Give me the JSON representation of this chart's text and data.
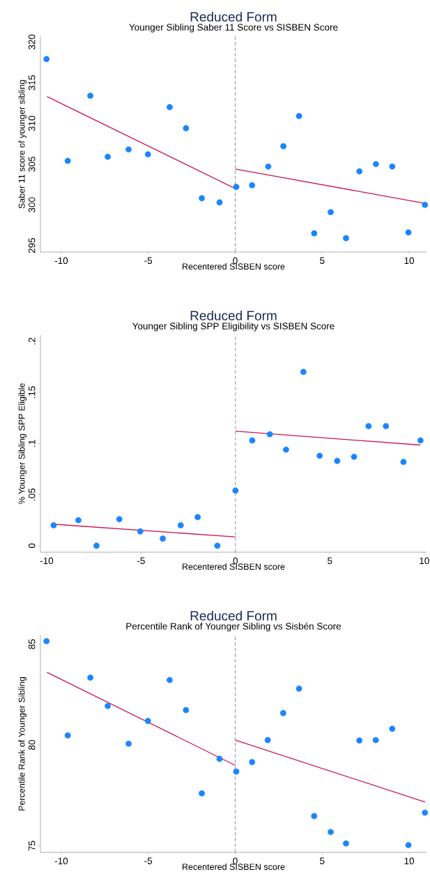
{
  "chart_data": [
    {
      "type": "scatter",
      "title": "Reduced Form",
      "subtitle": "Younger Sibling Saber 11 Score vs SISBEN Score",
      "xlabel": "Recentered SISBEN score",
      "ylabel": "Saber 11 score of younger sibling",
      "xlim": [
        -11.2,
        11
      ],
      "ylim": [
        294.2,
        320.7
      ],
      "xticks": [
        -10,
        -5,
        0,
        5,
        10
      ],
      "yticks": [
        295,
        300,
        305,
        310,
        315,
        320
      ],
      "ref_lines": [
        {
          "axis": "x",
          "value": 0,
          "color": "#888888",
          "line_style": "dashed"
        }
      ],
      "series": [
        {
          "color": "#1a85ff",
          "x": [
            -10.85,
            -9.63,
            -8.33,
            -7.33,
            -6.13,
            -5.02,
            -3.77,
            -2.83,
            -1.92,
            -0.9,
            0.06,
            0.97,
            1.9,
            2.77,
            3.67,
            4.54,
            5.49,
            6.37,
            7.14,
            8.09,
            9.03,
            9.96,
            10.91
          ],
          "values": [
            317.9,
            305.4,
            313.4,
            305.9,
            306.8,
            306.2,
            312.0,
            309.4,
            300.8,
            300.3,
            302.2,
            302.4,
            304.7,
            307.2,
            310.9,
            296.5,
            299.1,
            295.9,
            304.1,
            305.0,
            304.7,
            296.6,
            300.0
          ]
        },
        {
          "type": "line",
          "color": "#c8174a",
          "x": [
            -10.82,
            0
          ],
          "values": [
            313.3,
            302.0
          ]
        },
        {
          "type": "line",
          "color": "#c8174a",
          "x": [
            0,
            10.86
          ],
          "values": [
            304.4,
            300.2
          ]
        }
      ]
    },
    {
      "type": "scatter",
      "title": "Reduced Form",
      "subtitle": "Younger Sibling SPP Eligibility vs SISBEN Score",
      "xlabel": "Recentered SISBEN score",
      "ylabel": "% Younger Sibling SPP Eligible",
      "xlim": [
        -10.33,
        10.12
      ],
      "ylim": [
        -0.0063,
        0.206
      ],
      "xticks": [
        -10,
        -5,
        0,
        5,
        10
      ],
      "yticks": [
        0,
        {
          "value": 0.05,
          "label": ".05"
        },
        {
          "value": 0.1,
          "label": ".1"
        },
        {
          "value": 0.15,
          "label": ".15"
        },
        {
          "value": 0.2,
          "label": ".2"
        }
      ],
      "ref_lines": [
        {
          "axis": "x",
          "value": 0,
          "color": "#888888",
          "line_style": "dashed"
        }
      ],
      "series": [
        {
          "color": "#1a85ff",
          "x": [
            -9.63,
            -8.32,
            -7.36,
            -6.15,
            -5.04,
            -3.85,
            -2.9,
            -2.0,
            -0.96,
            0.0,
            0.89,
            1.82,
            2.68,
            3.6,
            4.46,
            5.39,
            6.28,
            7.05,
            7.97,
            8.9,
            9.8
          ],
          "values": [
            0.02,
            0.025,
            0.0,
            0.026,
            0.014,
            0.007,
            0.02,
            0.028,
            0.0,
            0.054,
            0.103,
            0.109,
            0.094,
            0.17,
            0.088,
            0.083,
            0.087,
            0.117,
            0.117,
            0.082,
            0.103
          ]
        },
        {
          "type": "line",
          "color": "#c8174a",
          "x": [
            -9.6,
            0
          ],
          "values": [
            0.021,
            0.0087
          ]
        },
        {
          "type": "line",
          "color": "#c8174a",
          "x": [
            0,
            9.79
          ],
          "values": [
            0.112,
            0.0985
          ]
        }
      ]
    },
    {
      "type": "scatter",
      "title": "Reduced Form",
      "subtitle": "Percentile Rank of Younger Sibling vs Sisbén Score",
      "xlabel": "Recentered SISBEN score",
      "ylabel": "Percentile Rank of Younger Sibling",
      "xlim": [
        -11.2,
        11
      ],
      "ylim": [
        74.67,
        85.44
      ],
      "xticks": [
        -10,
        -5,
        0,
        5,
        10
      ],
      "yticks": [
        75,
        80,
        85
      ],
      "ref_lines": [
        {
          "axis": "x",
          "value": 0,
          "color": "#888888",
          "line_style": "dashed"
        }
      ],
      "series": [
        {
          "color": "#1a85ff",
          "x": [
            -10.85,
            -9.63,
            -8.33,
            -7.33,
            -6.13,
            -5.02,
            -3.77,
            -2.83,
            -1.92,
            -0.9,
            0.06,
            0.97,
            1.87,
            2.76,
            3.67,
            4.54,
            5.49,
            6.37,
            7.14,
            8.08,
            9.03,
            9.96,
            10.91
          ],
          "values": [
            85.15,
            80.47,
            83.34,
            81.93,
            80.06,
            81.19,
            83.22,
            81.73,
            77.6,
            79.31,
            78.68,
            79.15,
            80.24,
            81.58,
            82.79,
            76.47,
            75.68,
            75.11,
            80.22,
            80.24,
            80.8,
            75.03,
            76.64
          ]
        },
        {
          "type": "line",
          "color": "#c8174a",
          "x": [
            -10.82,
            0
          ],
          "values": [
            83.6,
            78.99
          ]
        },
        {
          "type": "line",
          "color": "#c8174a",
          "x": [
            0,
            10.91
          ],
          "values": [
            80.24,
            77.17
          ]
        }
      ]
    }
  ]
}
